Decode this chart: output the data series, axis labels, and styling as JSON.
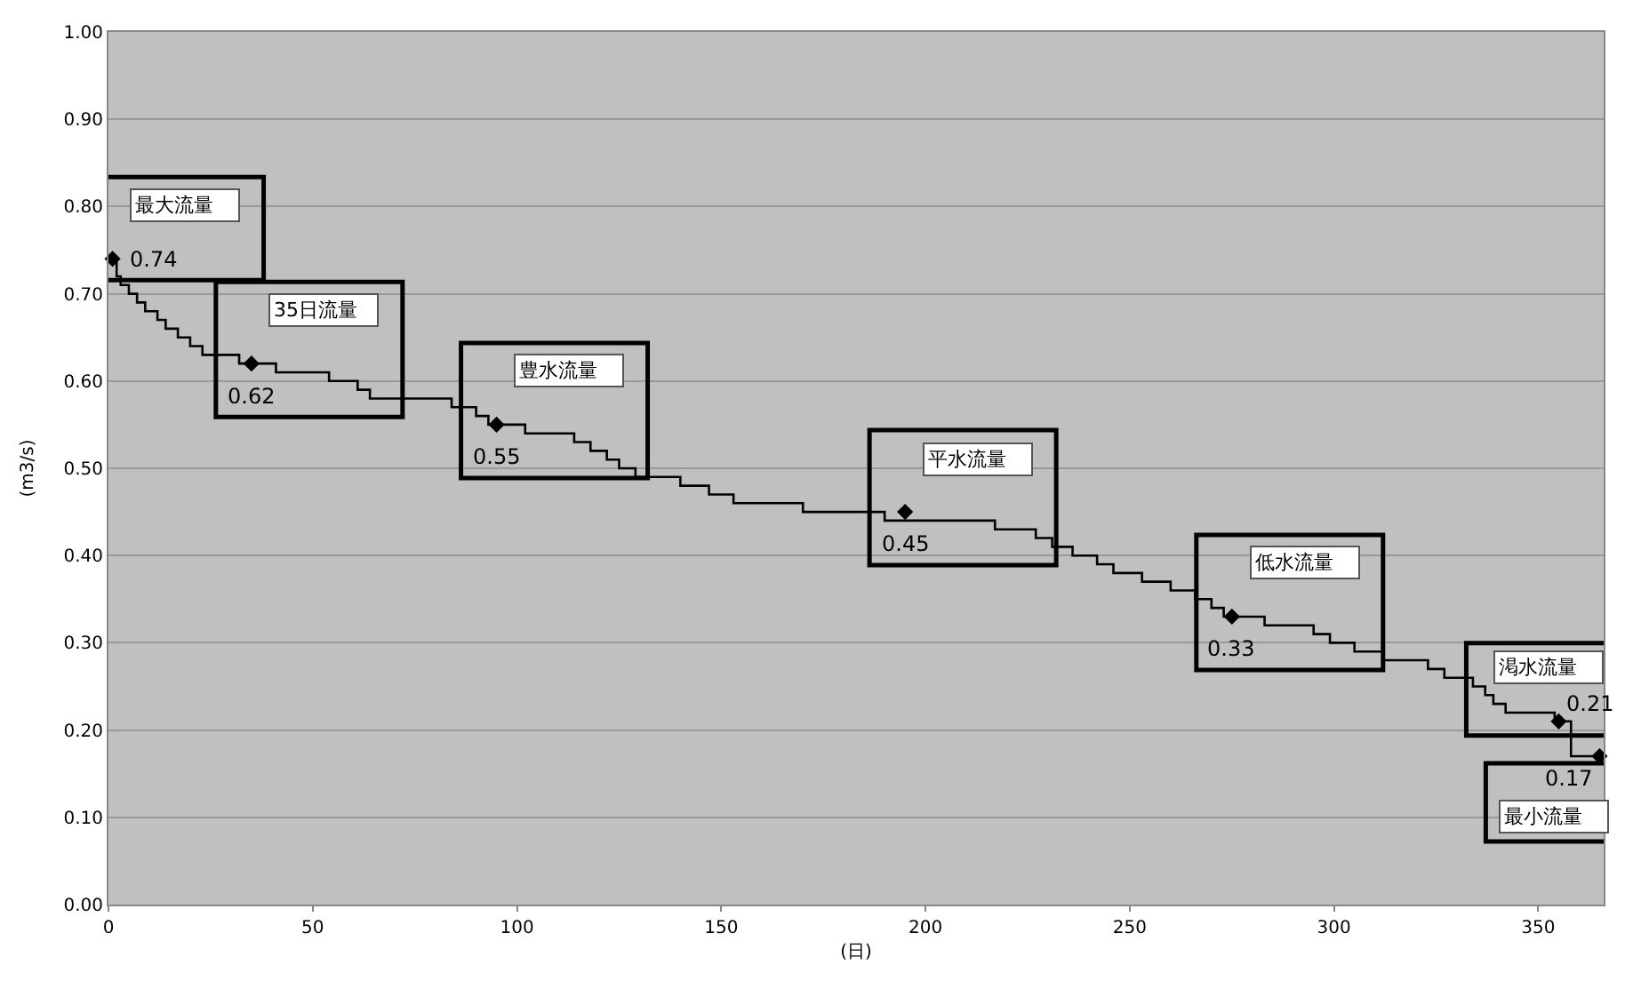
{
  "chart_data": {
    "type": "step",
    "xlabel": "(日)",
    "ylabel": "(m3/s)",
    "xlim": [
      0,
      366
    ],
    "xticks": [
      0,
      50,
      100,
      150,
      200,
      250,
      300,
      350
    ],
    "ylim": [
      0,
      1
    ],
    "yticks": [
      {
        "value": 0,
        "label": "0.00"
      },
      {
        "value": 0.1,
        "label": "0.10"
      },
      {
        "value": 0.2,
        "label": "0.20"
      },
      {
        "value": 0.3,
        "label": "0.30"
      },
      {
        "value": 0.4,
        "label": "0.40"
      },
      {
        "value": 0.5,
        "label": "0.50"
      },
      {
        "value": 0.6,
        "label": "0.60"
      },
      {
        "value": 0.7,
        "label": "0.70"
      },
      {
        "value": 0.8,
        "label": "0.80"
      },
      {
        "value": 0.9,
        "label": "0.90"
      },
      {
        "value": 1,
        "label": "1.00"
      }
    ],
    "grid": "y",
    "series": [
      {
        "color": "#000000",
        "marker": "none",
        "x": [
          1,
          2,
          3,
          5,
          7,
          9,
          12,
          14,
          17,
          20,
          23,
          32,
          41,
          54,
          61,
          64,
          84,
          90,
          93,
          102,
          114,
          118,
          122,
          125,
          129,
          140,
          147,
          153,
          170,
          190,
          217,
          227,
          231,
          236,
          242,
          246,
          253,
          260,
          266,
          270,
          273,
          283,
          295,
          299,
          305,
          312,
          323,
          327,
          334,
          337,
          339,
          342,
          354,
          358,
          365
        ],
        "values": [
          0.74,
          0.72,
          0.71,
          0.7,
          0.69,
          0.68,
          0.67,
          0.66,
          0.65,
          0.64,
          0.63,
          0.62,
          0.61,
          0.6,
          0.59,
          0.58,
          0.57,
          0.56,
          0.55,
          0.54,
          0.53,
          0.52,
          0.51,
          0.5,
          0.49,
          0.48,
          0.47,
          0.46,
          0.45,
          0.44,
          0.43,
          0.42,
          0.41,
          0.4,
          0.39,
          0.38,
          0.37,
          0.36,
          0.35,
          0.34,
          0.33,
          0.32,
          0.31,
          0.3,
          0.29,
          0.28,
          0.27,
          0.26,
          0.25,
          0.24,
          0.23,
          0.22,
          0.21,
          0.17,
          0.17
        ]
      },
      {
        "type": "scatter",
        "color": "#000000",
        "marker": "diamond",
        "x": [
          1,
          35,
          95,
          195,
          275,
          355,
          365
        ],
        "values": [
          0.74,
          0.62,
          0.55,
          0.45,
          0.33,
          0.21,
          0.17
        ],
        "value_labels": [
          "0.74",
          "0.62",
          "0.55",
          "0.45",
          "0.33",
          "0.21",
          "0.17"
        ]
      }
    ],
    "annotations": [
      {
        "text": "最大流量",
        "x": 1,
        "y": 0.74
      },
      {
        "text": "35日流量",
        "x": 35,
        "y": 0.62
      },
      {
        "text": "豊水流量",
        "x": 95,
        "y": 0.55
      },
      {
        "text": "平水流量",
        "x": 195,
        "y": 0.45
      },
      {
        "text": "低水流量",
        "x": 275,
        "y": 0.33
      },
      {
        "text": "渇水流量",
        "x": 355,
        "y": 0.21
      },
      {
        "text": "最小流量",
        "x": 365,
        "y": 0.17
      }
    ]
  }
}
